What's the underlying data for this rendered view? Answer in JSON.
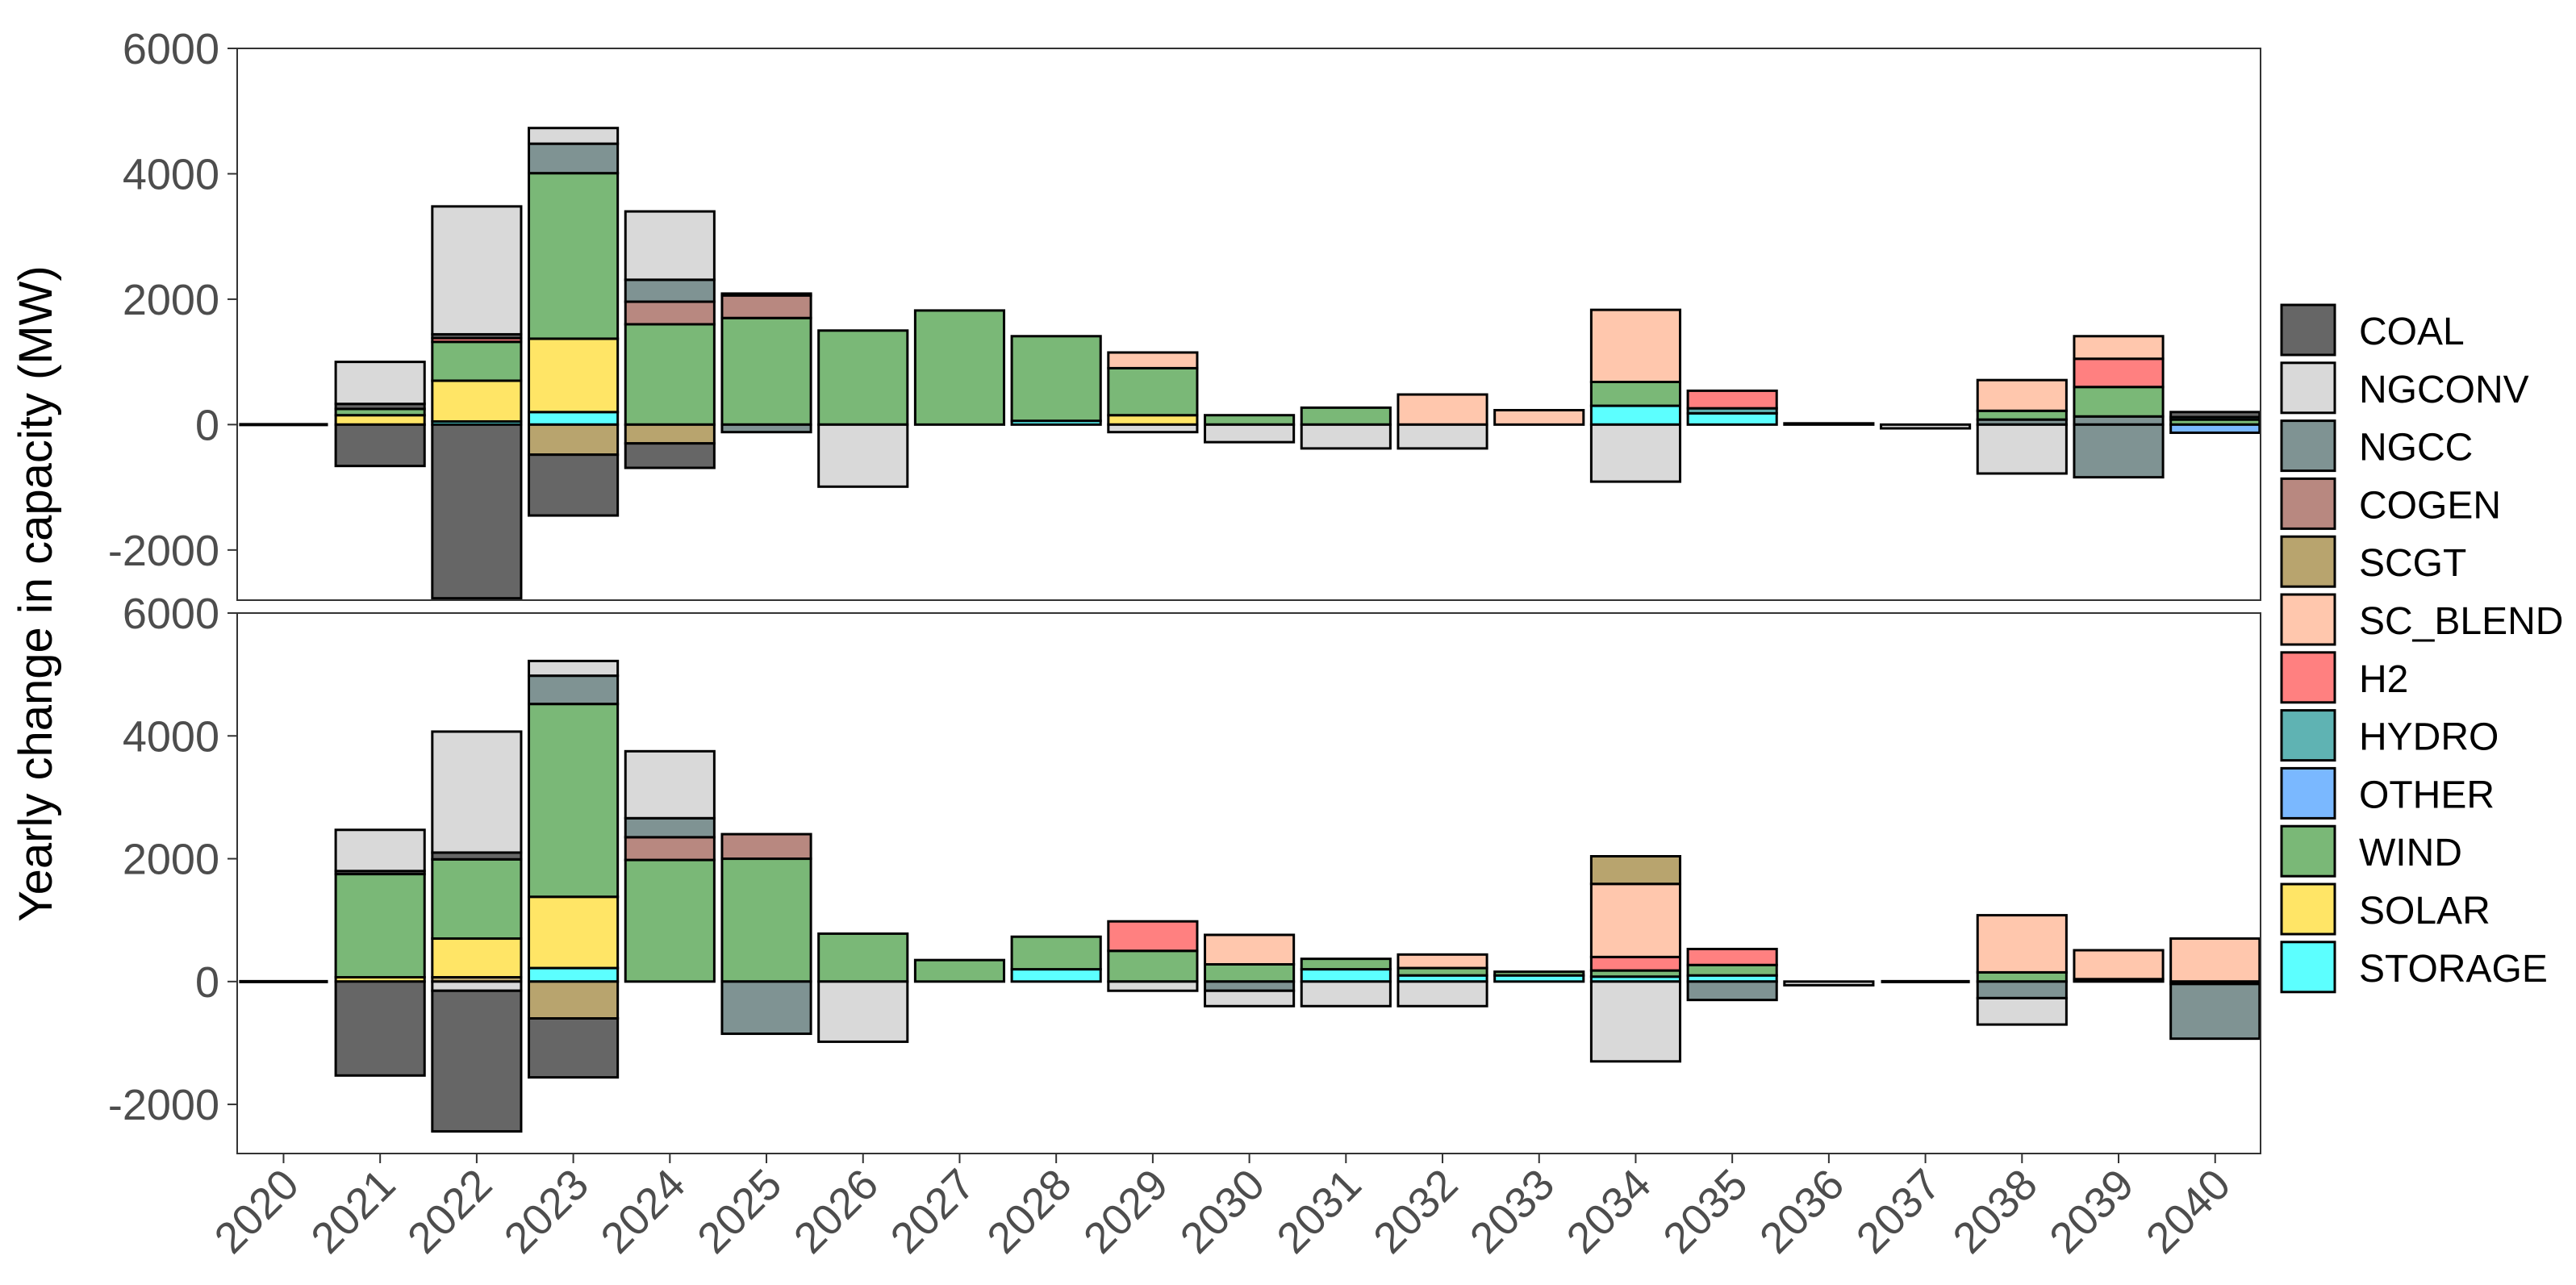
{
  "chart_data": {
    "type": "bar",
    "stacked": true,
    "ylabel": "Yearly change in capacity (MW)",
    "xlabel": "",
    "title": "",
    "categories": [
      "2020",
      "2021",
      "2022",
      "2023",
      "2024",
      "2025",
      "2026",
      "2027",
      "2028",
      "2029",
      "2030",
      "2031",
      "2032",
      "2033",
      "2034",
      "2035",
      "2036",
      "2037",
      "2038",
      "2039",
      "2040"
    ],
    "y_ticks": [
      "6000",
      "4000",
      "2000",
      "0",
      "-2000"
    ],
    "legend_placement": "right",
    "grid": false,
    "legend": [
      {
        "name": "COAL",
        "color": "#666666"
      },
      {
        "name": "NGCONV",
        "color": "#d9d9d9"
      },
      {
        "name": "NGCC",
        "color": "#7f9393"
      },
      {
        "name": "COGEN",
        "color": "#b88880"
      },
      {
        "name": "SCGT",
        "color": "#b8a46e"
      },
      {
        "name": "SC_BLEND",
        "color": "#ffc7ad"
      },
      {
        "name": "H2",
        "color": "#ff8080"
      },
      {
        "name": "HYDRO",
        "color": "#5fb3b3"
      },
      {
        "name": "OTHER",
        "color": "#7ab8ff"
      },
      {
        "name": "WIND",
        "color": "#7ab877"
      },
      {
        "name": "SOLAR",
        "color": "#ffe566"
      },
      {
        "name": "STORAGE",
        "color": "#5cffff"
      }
    ],
    "panels": [
      {
        "ylim": [
          -3000,
          6000
        ],
        "positive": [
          [],
          [
            {
              "s": "SOLAR",
              "v": 150
            },
            {
              "s": "WIND",
              "v": 100
            },
            {
              "s": "COAL",
              "v": 80
            },
            {
              "s": "NGCONV",
              "v": 670
            }
          ],
          [
            {
              "s": "STORAGE",
              "v": 50
            },
            {
              "s": "SOLAR",
              "v": 650
            },
            {
              "s": "WIND",
              "v": 620
            },
            {
              "s": "H2",
              "v": 60
            },
            {
              "s": "COAL",
              "v": 60
            },
            {
              "s": "NGCONV",
              "v": 2040
            }
          ],
          [
            {
              "s": "STORAGE",
              "v": 200
            },
            {
              "s": "SOLAR",
              "v": 1170
            },
            {
              "s": "WIND",
              "v": 2640
            },
            {
              "s": "NGCC",
              "v": 470
            },
            {
              "s": "NGCONV",
              "v": 250
            }
          ],
          [
            {
              "s": "WIND",
              "v": 1600
            },
            {
              "s": "COGEN",
              "v": 360
            },
            {
              "s": "NGCC",
              "v": 350
            },
            {
              "s": "NGCONV",
              "v": 1090
            }
          ],
          [
            {
              "s": "WIND",
              "v": 1700
            },
            {
              "s": "COGEN",
              "v": 360
            },
            {
              "s": "COAL",
              "v": 30
            }
          ],
          [
            {
              "s": "WIND",
              "v": 1500
            }
          ],
          [
            {
              "s": "WIND",
              "v": 1820
            }
          ],
          [
            {
              "s": "STORAGE",
              "v": 60
            },
            {
              "s": "WIND",
              "v": 1350
            }
          ],
          [
            {
              "s": "SOLAR",
              "v": 150
            },
            {
              "s": "WIND",
              "v": 750
            },
            {
              "s": "SC_BLEND",
              "v": 250
            }
          ],
          [
            {
              "s": "WIND",
              "v": 150
            }
          ],
          [
            {
              "s": "WIND",
              "v": 270
            }
          ],
          [
            {
              "s": "SC_BLEND",
              "v": 480
            }
          ],
          [
            {
              "s": "SC_BLEND",
              "v": 230
            }
          ],
          [
            {
              "s": "STORAGE",
              "v": 300
            },
            {
              "s": "WIND",
              "v": 380
            },
            {
              "s": "SC_BLEND",
              "v": 1150
            }
          ],
          [
            {
              "s": "STORAGE",
              "v": 180
            },
            {
              "s": "HYDRO",
              "v": 80
            },
            {
              "s": "H2",
              "v": 280
            }
          ],
          [
            {
              "s": "WIND",
              "v": 20
            }
          ],
          [],
          [
            {
              "s": "NGCC",
              "v": 80
            },
            {
              "s": "WIND",
              "v": 140
            },
            {
              "s": "SC_BLEND",
              "v": 490
            }
          ],
          [
            {
              "s": "NGCC",
              "v": 130
            },
            {
              "s": "WIND",
              "v": 470
            },
            {
              "s": "H2",
              "v": 450
            },
            {
              "s": "SC_BLEND",
              "v": 360
            }
          ],
          [
            {
              "s": "WIND",
              "v": 80
            },
            {
              "s": "HYDRO",
              "v": 40
            },
            {
              "s": "COAL",
              "v": 80
            }
          ]
        ],
        "negative": [
          [],
          [
            {
              "s": "COAL",
              "v": -660
            }
          ],
          [
            {
              "s": "COAL",
              "v": -2770
            }
          ],
          [
            {
              "s": "SCGT",
              "v": -480
            },
            {
              "s": "COAL",
              "v": -970
            }
          ],
          [
            {
              "s": "SCGT",
              "v": -300
            },
            {
              "s": "COAL",
              "v": -390
            }
          ],
          [
            {
              "s": "NGCC",
              "v": -120
            }
          ],
          [
            {
              "s": "NGCONV",
              "v": -990
            }
          ],
          [],
          [],
          [
            {
              "s": "NGCONV",
              "v": -120
            }
          ],
          [
            {
              "s": "NGCONV",
              "v": -280
            }
          ],
          [
            {
              "s": "NGCONV",
              "v": -380
            }
          ],
          [
            {
              "s": "NGCONV",
              "v": -380
            }
          ],
          [],
          [
            {
              "s": "NGCONV",
              "v": -910
            }
          ],
          [],
          [],
          [
            {
              "s": "NGCONV",
              "v": -60
            }
          ],
          [
            {
              "s": "NGCONV",
              "v": -780
            }
          ],
          [
            {
              "s": "NGCC",
              "v": -840
            }
          ],
          [
            {
              "s": "OTHER",
              "v": -130
            }
          ]
        ]
      },
      {
        "ylim": [
          -3000,
          6000
        ],
        "positive": [
          [],
          [
            {
              "s": "SOLAR",
              "v": 70
            },
            {
              "s": "WIND",
              "v": 1680
            },
            {
              "s": "COAL",
              "v": 50
            },
            {
              "s": "NGCONV",
              "v": 670
            }
          ],
          [
            {
              "s": "SCGT",
              "v": 70
            },
            {
              "s": "SOLAR",
              "v": 630
            },
            {
              "s": "WIND",
              "v": 1290
            },
            {
              "s": "COAL",
              "v": 110
            },
            {
              "s": "NGCONV",
              "v": 1970
            }
          ],
          [
            {
              "s": "STORAGE",
              "v": 220
            },
            {
              "s": "SOLAR",
              "v": 1160
            },
            {
              "s": "WIND",
              "v": 3140
            },
            {
              "s": "NGCC",
              "v": 460
            },
            {
              "s": "NGCONV",
              "v": 240
            }
          ],
          [
            {
              "s": "WIND",
              "v": 1980
            },
            {
              "s": "COGEN",
              "v": 370
            },
            {
              "s": "NGCC",
              "v": 310
            },
            {
              "s": "NGCONV",
              "v": 1090
            }
          ],
          [
            {
              "s": "WIND",
              "v": 2000
            },
            {
              "s": "COGEN",
              "v": 400
            }
          ],
          [
            {
              "s": "WIND",
              "v": 780
            }
          ],
          [
            {
              "s": "WIND",
              "v": 350
            }
          ],
          [
            {
              "s": "STORAGE",
              "v": 200
            },
            {
              "s": "WIND",
              "v": 530
            }
          ],
          [
            {
              "s": "WIND",
              "v": 500
            },
            {
              "s": "H2",
              "v": 480
            }
          ],
          [
            {
              "s": "WIND",
              "v": 280
            },
            {
              "s": "SC_BLEND",
              "v": 480
            }
          ],
          [
            {
              "s": "STORAGE",
              "v": 200
            },
            {
              "s": "WIND",
              "v": 170
            }
          ],
          [
            {
              "s": "STORAGE",
              "v": 100
            },
            {
              "s": "WIND",
              "v": 120
            },
            {
              "s": "SC_BLEND",
              "v": 220
            }
          ],
          [
            {
              "s": "STORAGE",
              "v": 100
            },
            {
              "s": "WIND",
              "v": 60
            }
          ],
          [
            {
              "s": "STORAGE",
              "v": 80
            },
            {
              "s": "WIND",
              "v": 100
            },
            {
              "s": "H2",
              "v": 220
            },
            {
              "s": "SC_BLEND",
              "v": 1190
            },
            {
              "s": "SCGT",
              "v": 450
            }
          ],
          [
            {
              "s": "STORAGE",
              "v": 100
            },
            {
              "s": "WIND",
              "v": 170
            },
            {
              "s": "H2",
              "v": 260
            }
          ],
          [],
          [],
          [
            {
              "s": "WIND",
              "v": 150
            },
            {
              "s": "SC_BLEND",
              "v": 930
            }
          ],
          [
            {
              "s": "WIND",
              "v": 40
            },
            {
              "s": "SC_BLEND",
              "v": 470
            }
          ],
          [
            {
              "s": "SC_BLEND",
              "v": 700
            }
          ]
        ],
        "negative": [
          [],
          [
            {
              "s": "COAL",
              "v": -1530
            }
          ],
          [
            {
              "s": "NGCONV",
              "v": -150
            },
            {
              "s": "COAL",
              "v": -2290
            }
          ],
          [
            {
              "s": "SCGT",
              "v": -600
            },
            {
              "s": "COAL",
              "v": -960
            }
          ],
          [],
          [
            {
              "s": "NGCC",
              "v": -850
            }
          ],
          [
            {
              "s": "NGCONV",
              "v": -980
            }
          ],
          [],
          [],
          [
            {
              "s": "NGCONV",
              "v": -150
            }
          ],
          [
            {
              "s": "NGCC",
              "v": -150
            },
            {
              "s": "NGCONV",
              "v": -250
            }
          ],
          [
            {
              "s": "NGCONV",
              "v": -400
            }
          ],
          [
            {
              "s": "NGCONV",
              "v": -400
            }
          ],
          [],
          [
            {
              "s": "NGCONV",
              "v": -1300
            }
          ],
          [
            {
              "s": "NGCC",
              "v": -300
            }
          ],
          [
            {
              "s": "NGCONV",
              "v": -60
            }
          ],
          [],
          [
            {
              "s": "NGCC",
              "v": -270
            },
            {
              "s": "NGCONV",
              "v": -430
            }
          ],
          [],
          [
            {
              "s": "COAL",
              "v": -40
            },
            {
              "s": "NGCC",
              "v": -890
            }
          ]
        ]
      }
    ]
  }
}
